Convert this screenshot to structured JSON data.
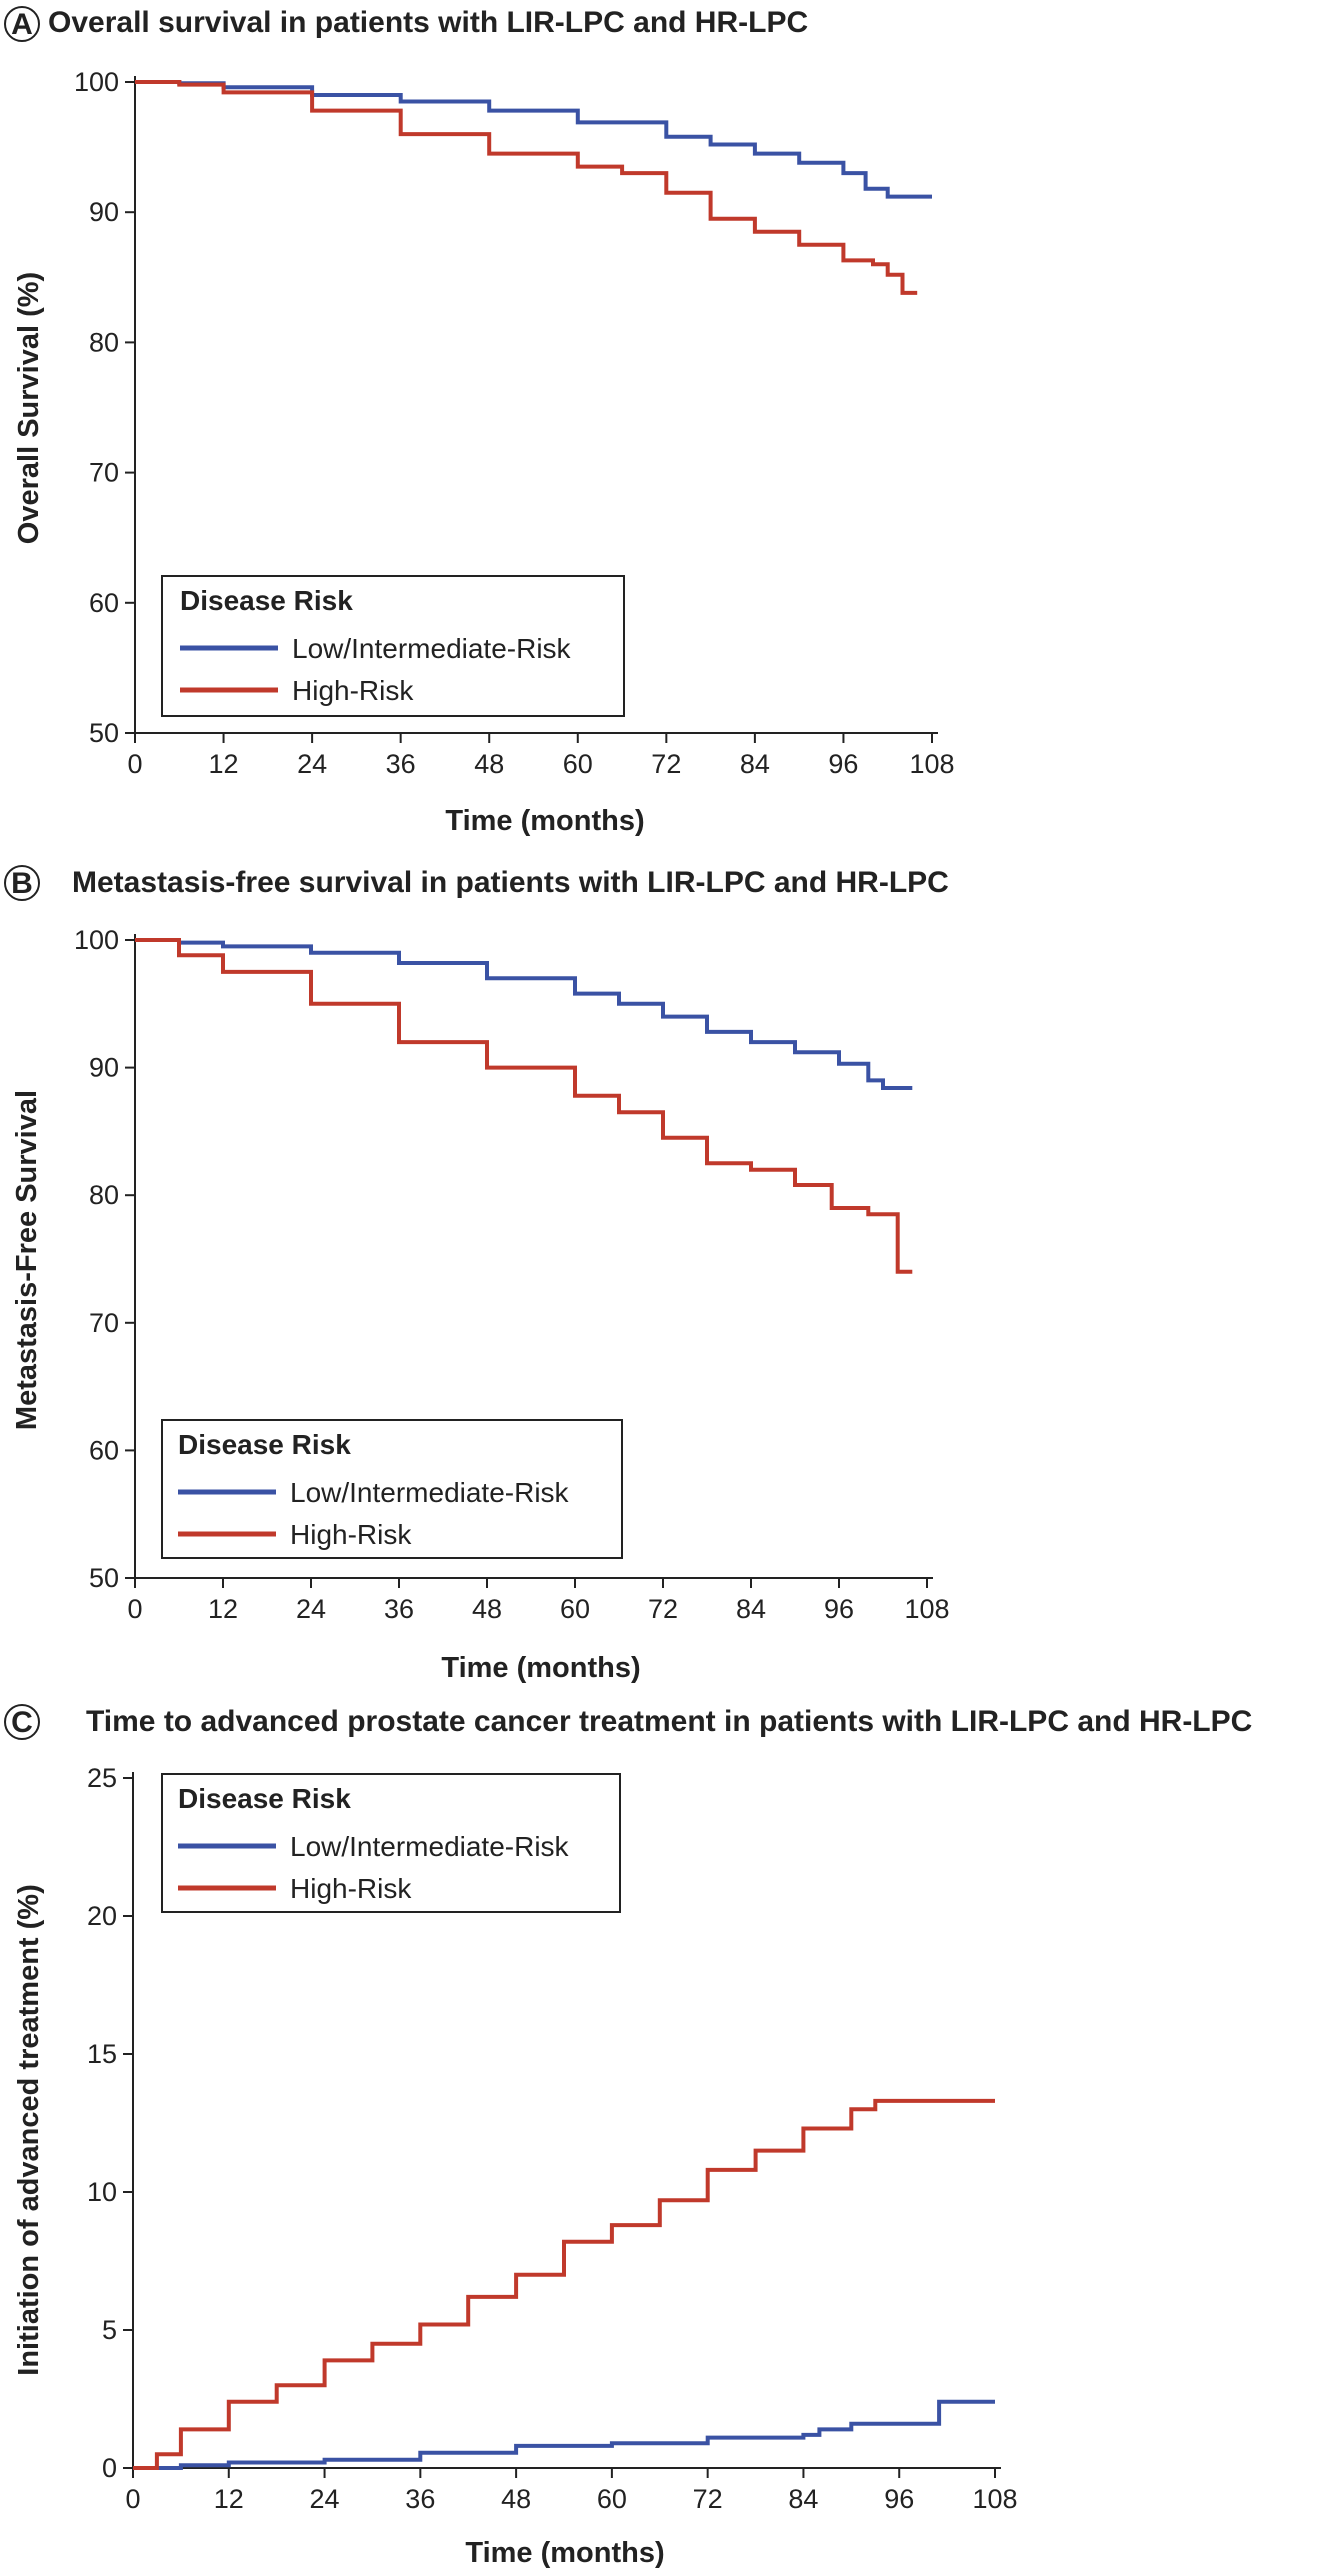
{
  "chart_data": [
    {
      "panel": "A",
      "type": "line",
      "title": "Overall survival in patients with LIR-LPC and HR-LPC",
      "xlabel": "Time (months)",
      "ylabel": "Overall Survival (%)",
      "xlim": [
        0,
        108
      ],
      "ylim": [
        50,
        100
      ],
      "xticks": [
        0,
        12,
        24,
        36,
        48,
        60,
        72,
        84,
        96,
        108
      ],
      "yticks": [
        50,
        60,
        70,
        80,
        90,
        100
      ],
      "legend": {
        "title": "Disease Risk",
        "position": "bottom-left"
      },
      "series": [
        {
          "name": "Low/Intermediate-Risk",
          "color": "#3a52a4",
          "x": [
            0,
            6,
            12,
            24,
            36,
            48,
            60,
            72,
            78,
            84,
            90,
            96,
            99,
            102,
            108
          ],
          "y": [
            100,
            99.9,
            99.6,
            99,
            98.5,
            97.8,
            96.9,
            95.8,
            95.2,
            94.5,
            93.8,
            93,
            91.8,
            91.2,
            91.2
          ]
        },
        {
          "name": "High-Risk",
          "color": "#c0392b",
          "x": [
            0,
            6,
            12,
            24,
            36,
            48,
            60,
            66,
            72,
            78,
            84,
            90,
            96,
            100,
            102,
            104,
            106
          ],
          "y": [
            100,
            99.8,
            99.2,
            97.8,
            96,
            94.5,
            93.5,
            93,
            91.5,
            89.5,
            88.5,
            87.5,
            86.3,
            86,
            85.2,
            83.8,
            83.8
          ]
        }
      ]
    },
    {
      "panel": "B",
      "type": "line",
      "title": "Metastasis-free survival in patients with LIR-LPC and HR-LPC",
      "xlabel": "Time (months)",
      "ylabel": "Metastasis-Free Survival",
      "xlim": [
        0,
        108
      ],
      "ylim": [
        50,
        100
      ],
      "xticks": [
        0,
        12,
        24,
        36,
        48,
        60,
        72,
        84,
        96,
        108
      ],
      "yticks": [
        50,
        60,
        70,
        80,
        90,
        100
      ],
      "legend": {
        "title": "Disease Risk",
        "position": "bottom-left"
      },
      "series": [
        {
          "name": "Low/Intermediate-Risk",
          "color": "#3a52a4",
          "x": [
            0,
            6,
            12,
            24,
            36,
            48,
            60,
            66,
            72,
            78,
            84,
            90,
            96,
            100,
            102,
            106
          ],
          "y": [
            100,
            99.8,
            99.5,
            99,
            98.2,
            97,
            95.8,
            95,
            94,
            92.8,
            92,
            91.2,
            90.3,
            89,
            88.4,
            88.4
          ]
        },
        {
          "name": "High-Risk",
          "color": "#c0392b",
          "x": [
            0,
            6,
            12,
            24,
            36,
            48,
            60,
            66,
            72,
            78,
            84,
            90,
            95,
            100,
            103,
            104,
            106
          ],
          "y": [
            100,
            98.8,
            97.5,
            95,
            92,
            90,
            87.8,
            86.5,
            84.5,
            82.5,
            82,
            80.8,
            79,
            78.5,
            78.5,
            74,
            74
          ]
        }
      ]
    },
    {
      "panel": "C",
      "type": "line",
      "title": "Time to advanced prostate cancer treatment in patients with LIR-LPC and HR-LPC",
      "xlabel": "Time (months)",
      "ylabel": "Initiation of advanced treatment (%)",
      "xlim": [
        0,
        108
      ],
      "ylim": [
        0,
        25
      ],
      "xticks": [
        0,
        12,
        24,
        36,
        48,
        60,
        72,
        84,
        96,
        108
      ],
      "yticks": [
        0,
        5,
        10,
        15,
        20,
        25
      ],
      "legend": {
        "title": "Disease Risk",
        "position": "top-left"
      },
      "series": [
        {
          "name": "Low/Intermediate-Risk",
          "color": "#3a52a4",
          "x": [
            0,
            6,
            12,
            24,
            36,
            48,
            60,
            72,
            84,
            86,
            90,
            100,
            101,
            108
          ],
          "y": [
            0,
            0.1,
            0.2,
            0.3,
            0.55,
            0.8,
            0.9,
            1.1,
            1.2,
            1.4,
            1.6,
            1.6,
            2.4,
            2.4
          ]
        },
        {
          "name": "High-Risk",
          "color": "#c0392b",
          "x": [
            0,
            3,
            6,
            12,
            18,
            24,
            30,
            36,
            42,
            48,
            54,
            60,
            66,
            72,
            78,
            84,
            90,
            93,
            100,
            108
          ],
          "y": [
            0,
            0.5,
            1.4,
            2.4,
            3,
            3.9,
            4.5,
            5.2,
            6.2,
            7,
            8.2,
            8.8,
            9.7,
            10.8,
            11.5,
            12.3,
            13,
            13.3,
            13.3,
            13.3
          ]
        }
      ]
    }
  ]
}
